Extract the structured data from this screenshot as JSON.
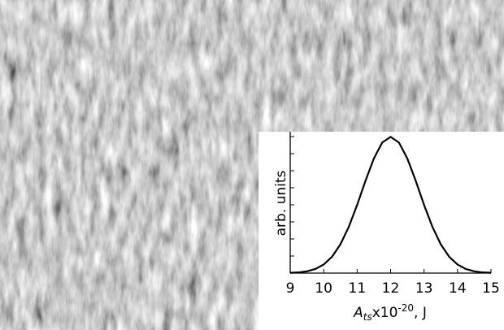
{
  "chart_data": {
    "type": "line",
    "x_label": {
      "symbol": "A",
      "subscript": "ts",
      "mantissa": "x10",
      "exponent": "-20",
      "unit": ", J"
    },
    "y_label": "arb. units",
    "x": [
      9,
      9.25,
      9.5,
      9.75,
      10,
      10.25,
      10.5,
      10.75,
      11,
      11.25,
      11.5,
      11.75,
      12,
      12.25,
      12.5,
      12.75,
      13,
      13.25,
      13.5,
      13.75,
      14,
      14.25,
      14.5,
      14.75,
      15
    ],
    "series": [
      {
        "color": "#000000",
        "values": [
          0.002,
          0.005,
          0.013,
          0.03,
          0.063,
          0.12,
          0.211,
          0.339,
          0.5,
          0.678,
          0.841,
          0.958,
          1.0,
          0.958,
          0.841,
          0.678,
          0.5,
          0.339,
          0.211,
          0.12,
          0.063,
          0.03,
          0.013,
          0.005,
          0.002
        ]
      }
    ],
    "xlim": [
      9,
      15
    ],
    "xticks": [
      9,
      10,
      11,
      12,
      13,
      14,
      15
    ],
    "ylim": [
      0,
      1.02
    ]
  }
}
